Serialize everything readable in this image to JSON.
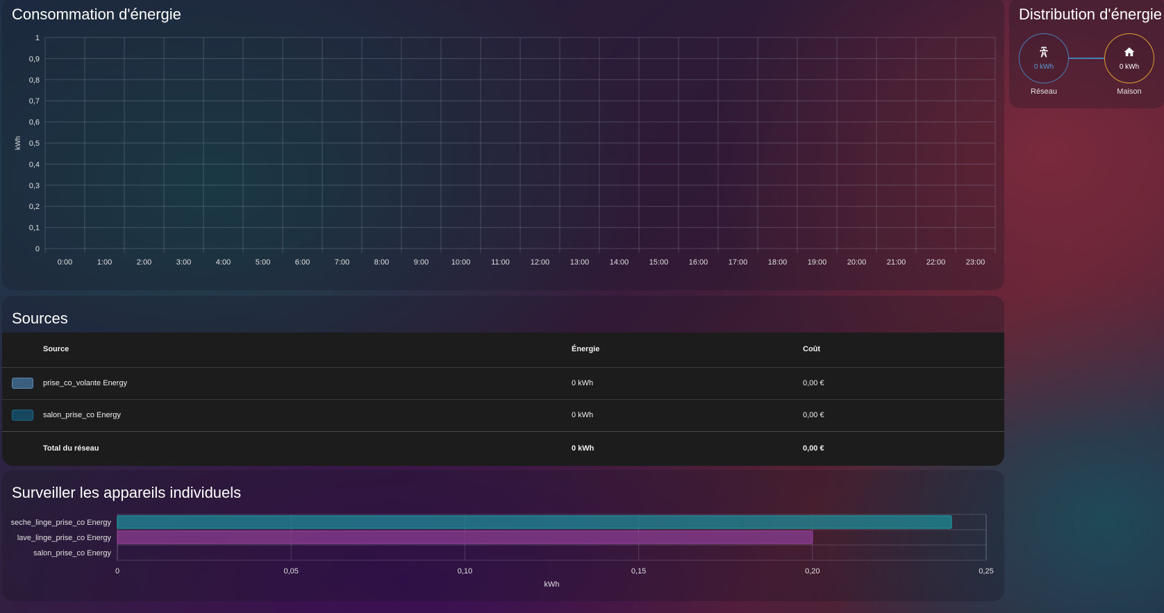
{
  "consumption": {
    "title": "Consommation d'énergie",
    "chart_data": {
      "type": "bar",
      "ylabel": "kWh",
      "ylim": [
        0,
        1
      ],
      "yticks": [
        "0",
        "0,1",
        "0,2",
        "0,3",
        "0,4",
        "0,5",
        "0,6",
        "0,7",
        "0,8",
        "0,9",
        "1"
      ],
      "categories": [
        "0:00",
        "1:00",
        "2:00",
        "3:00",
        "4:00",
        "5:00",
        "6:00",
        "7:00",
        "8:00",
        "9:00",
        "10:00",
        "11:00",
        "12:00",
        "13:00",
        "14:00",
        "15:00",
        "16:00",
        "17:00",
        "18:00",
        "19:00",
        "20:00",
        "21:00",
        "22:00",
        "23:00"
      ],
      "series": [],
      "grid": true
    }
  },
  "distribution": {
    "title": "Distribution d'énergie",
    "grid": {
      "value": "0 kWh",
      "label": "Réseau",
      "icon": "transmission-tower-icon"
    },
    "home": {
      "value": "0 kWh",
      "label": "Maison",
      "icon": "home-icon"
    },
    "colors": {
      "grid": "#4a7fb8",
      "home": "#e0a030"
    }
  },
  "sources": {
    "title": "Sources",
    "headers": {
      "source": "Source",
      "energy": "Énergie",
      "cost": "Coût"
    },
    "rows": [
      {
        "name": "prise_co_volante Energy",
        "energy": "0 kWh",
        "cost": "0,00 €",
        "color": "#3b5f7f"
      },
      {
        "name": "salon_prise_co Energy",
        "energy": "0 kWh",
        "cost": "0,00 €",
        "color": "#16475f"
      }
    ],
    "total": {
      "label": "Total du réseau",
      "energy": "0 kWh",
      "cost": "0,00 €"
    }
  },
  "devices": {
    "title": "Surveiller les appareils individuels",
    "chart_data": {
      "type": "bar",
      "orientation": "horizontal",
      "xlabel": "kWh",
      "xlim": [
        0,
        0.25
      ],
      "xticks": [
        {
          "value": 0,
          "label": "0"
        },
        {
          "value": 0.05,
          "label": "0,05"
        },
        {
          "value": 0.1,
          "label": "0,10"
        },
        {
          "value": 0.15,
          "label": "0,15"
        },
        {
          "value": 0.2,
          "label": "0,20"
        },
        {
          "value": 0.25,
          "label": "0,25"
        }
      ],
      "categories": [
        "seche_linge_prise_co Energy",
        "lave_linge_prise_co Energy",
        "salon_prise_co Energy"
      ],
      "values": [
        0.24,
        0.2,
        0
      ],
      "colors": [
        "#1f8a96",
        "#8b3d92",
        "#16475f"
      ]
    }
  }
}
